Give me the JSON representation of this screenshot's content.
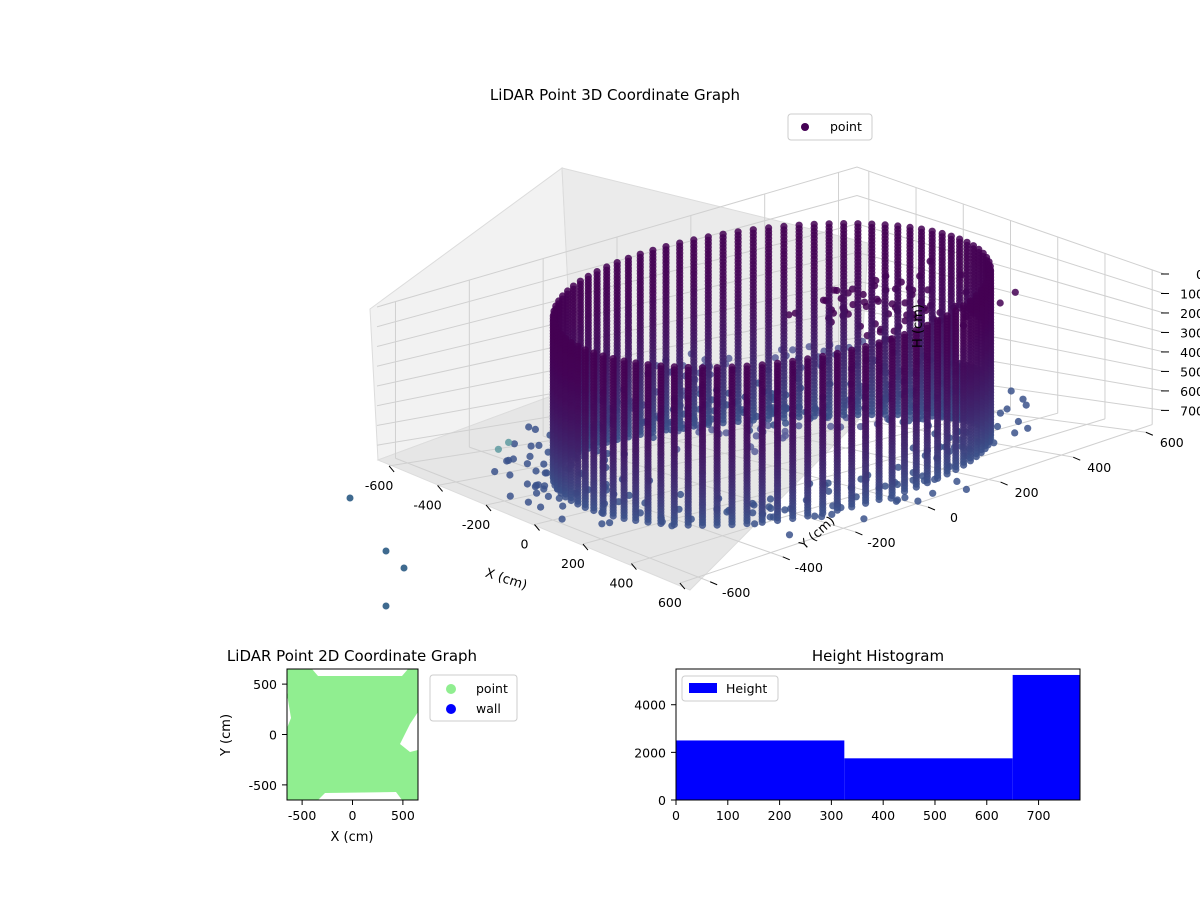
{
  "colors": {
    "point_3d_dark": "#440154",
    "point_3d_mid": "#3b528b",
    "point_3d_light": "#21918c",
    "point_2d": "#90ee90",
    "wall": "#0000ff",
    "histogram": "#0000ff",
    "pane": "#f2f2f2",
    "grid": "#d0d0d0"
  },
  "chart_data": [
    {
      "type": "scatter",
      "title": "LiDAR Point 3D Coordinate Graph",
      "xlabel": "X (cm)",
      "ylabel": "Y (cm)",
      "zlabel": "H (cm)",
      "x_ticks": [
        "-600",
        "-400",
        "-200",
        "0",
        "200",
        "400",
        "600"
      ],
      "y_ticks": [
        "-600",
        "-400",
        "-200",
        "0",
        "200",
        "400",
        "600"
      ],
      "z_ticks": [
        "0",
        "100",
        "200",
        "300",
        "400",
        "500",
        "600",
        "700"
      ],
      "xlim": [
        -650,
        650
      ],
      "ylim": [
        -650,
        650
      ],
      "zlim": [
        780,
        0
      ],
      "z_inverted": true,
      "legend": {
        "entries": [
          "point"
        ],
        "placement": "top-right"
      },
      "series": [
        {
          "name": "point",
          "shape": "cylindrical wall of points",
          "radius": 500,
          "z_range": [
            0,
            780
          ]
        }
      ]
    },
    {
      "type": "scatter",
      "title": "LiDAR Point 2D Coordinate Graph",
      "xlabel": "X (cm)",
      "ylabel": "Y (cm)",
      "x_ticks": [
        "-500",
        "0",
        "500"
      ],
      "y_ticks": [
        "500",
        "0",
        "-500"
      ],
      "xlim": [
        -650,
        650
      ],
      "ylim": [
        -650,
        650
      ],
      "legend": {
        "entries": [
          "point",
          "wall"
        ],
        "placement": "outside-right"
      },
      "series": [
        {
          "name": "point",
          "color": "#90ee90"
        },
        {
          "name": "wall",
          "color": "#0000ff"
        }
      ]
    },
    {
      "type": "bar",
      "title": "Height Histogram",
      "x_ticks": [
        "0",
        "100",
        "200",
        "300",
        "400",
        "500",
        "600",
        "700"
      ],
      "y_ticks": [
        "0",
        "2000",
        "4000"
      ],
      "xlim": [
        0,
        780
      ],
      "ylim": [
        0,
        5500
      ],
      "legend": {
        "entries": [
          "Height"
        ],
        "placement": "top-left"
      },
      "bins": [
        {
          "start": 0,
          "end": 325,
          "count": 2500
        },
        {
          "start": 325,
          "end": 650,
          "count": 1750
        },
        {
          "start": 650,
          "end": 780,
          "count": 5250
        }
      ]
    }
  ]
}
